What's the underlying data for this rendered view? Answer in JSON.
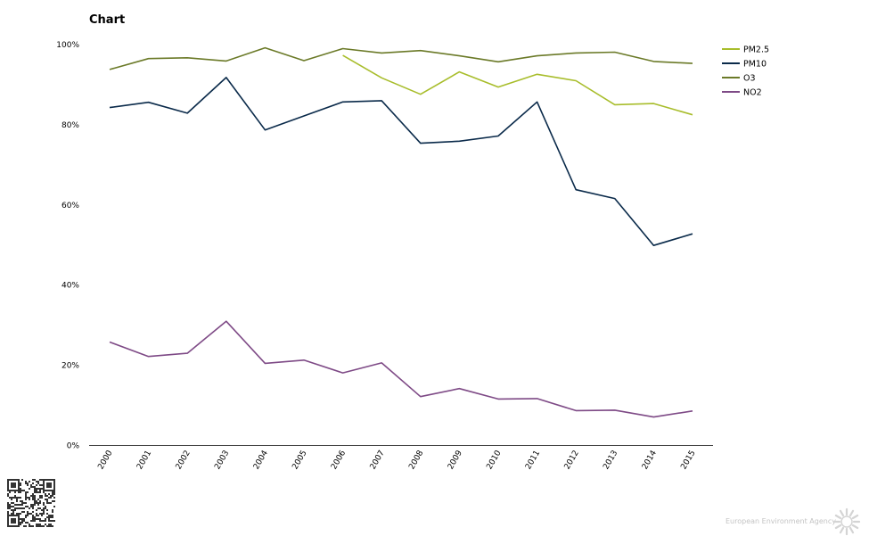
{
  "chart_data": {
    "type": "line",
    "title": "Chart",
    "xlabel": "",
    "ylabel": "",
    "x": [
      "2000",
      "2001",
      "2002",
      "2003",
      "2004",
      "2005",
      "2006",
      "2007",
      "2008",
      "2009",
      "2010",
      "2011",
      "2012",
      "2013",
      "2014",
      "2015"
    ],
    "ylim": [
      0,
      100
    ],
    "y_ticks": [
      0,
      20,
      40,
      60,
      80,
      100
    ],
    "y_tick_labels": [
      "0%",
      "20%",
      "40%",
      "60%",
      "80%",
      "100%"
    ],
    "grid": false,
    "legend_position": "top-right",
    "series": [
      {
        "name": "PM2.5",
        "color": "#a8bd2b",
        "values": [
          null,
          null,
          null,
          null,
          null,
          null,
          97.3,
          91.7,
          87.6,
          93.2,
          89.4,
          92.6,
          91.0,
          85.0,
          85.3,
          82.5
        ]
      },
      {
        "name": "PM10",
        "color": "#0a2a4a",
        "values": [
          84.3,
          85.6,
          82.9,
          91.8,
          78.7,
          82.2,
          85.7,
          86.0,
          75.4,
          75.9,
          77.2,
          85.7,
          63.8,
          61.6,
          49.9,
          52.8
        ]
      },
      {
        "name": "O3",
        "color": "#6b7a28",
        "values": [
          93.8,
          96.5,
          96.7,
          95.9,
          99.2,
          96.0,
          99.0,
          97.9,
          98.5,
          97.2,
          95.7,
          97.2,
          97.9,
          98.1,
          95.8,
          95.3
        ]
      },
      {
        "name": "NO2",
        "color": "#7e4a86",
        "values": [
          25.8,
          22.2,
          23.0,
          31.0,
          20.5,
          21.3,
          18.1,
          20.6,
          12.2,
          14.2,
          11.6,
          11.7,
          8.7,
          8.8,
          7.1,
          8.6
        ]
      }
    ]
  },
  "footer": {
    "credit": "European Environment Agency"
  }
}
